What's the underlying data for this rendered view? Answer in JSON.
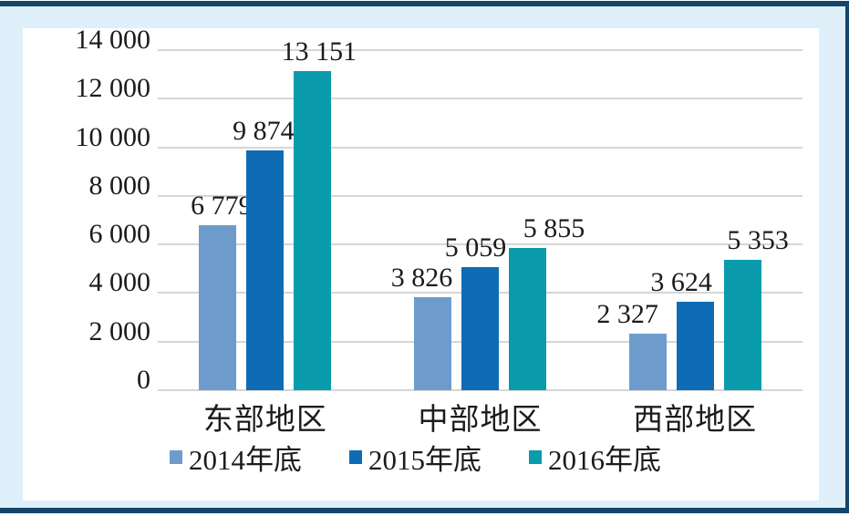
{
  "chart_data": {
    "type": "bar",
    "title": "",
    "categories": [
      "东部地区",
      "中部地区",
      "西部地区"
    ],
    "series": [
      {
        "name": "2014年底",
        "color": "#6d9ccc",
        "values": [
          6779,
          3826,
          2327
        ],
        "labels": [
          "6 779",
          "3 826",
          "2 327"
        ]
      },
      {
        "name": "2015年底",
        "color": "#0f6cb4",
        "values": [
          9874,
          5059,
          3624
        ],
        "labels": [
          "9 874",
          "5 059",
          "3 624"
        ]
      },
      {
        "name": "2016年底",
        "color": "#0a9bad",
        "values": [
          13151,
          5855,
          5353
        ],
        "labels": [
          "13 151",
          "5 855",
          "5 353"
        ]
      }
    ],
    "y_axis": {
      "min": 0,
      "max": 14000,
      "tick_interval": 2000,
      "ticks": [
        {
          "value": 0,
          "label": "0"
        },
        {
          "value": 2000,
          "label": "2 000"
        },
        {
          "value": 4000,
          "label": "4 000"
        },
        {
          "value": 6000,
          "label": "6 000"
        },
        {
          "value": 8000,
          "label": "8 000"
        },
        {
          "value": 10000,
          "label": "10 000"
        },
        {
          "value": 12000,
          "label": "12 000"
        },
        {
          "value": 14000,
          "label": "14 000"
        }
      ]
    },
    "grid": true,
    "legend_position": "bottom",
    "xlabel": "",
    "ylabel": ""
  },
  "colors": {
    "frame_border": "#14466b",
    "frame_background": "#dff0fa",
    "panel_background": "#ffffff",
    "gridline": "#d6d6d6",
    "text": "#1b1b1b",
    "series_2014": "#6d9ccc",
    "series_2015": "#0f6cb4",
    "series_2016": "#0a9bad"
  }
}
